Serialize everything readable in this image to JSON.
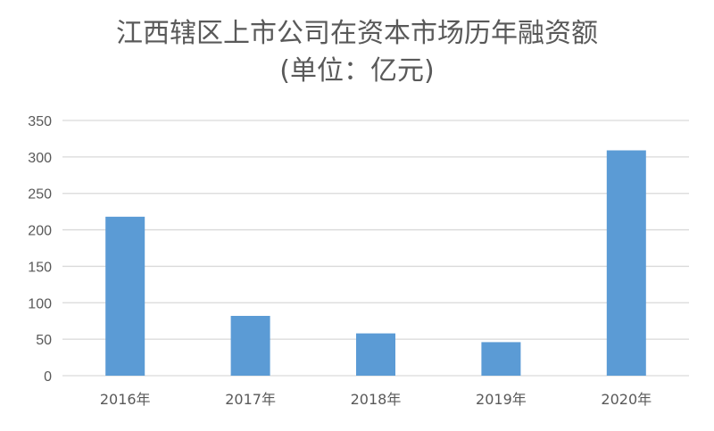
{
  "chart_data": {
    "type": "bar",
    "title": "江西辖区上市公司在资本市场历年融资额",
    "subtitle": "(单位：亿元)",
    "categories": [
      "2016年",
      "2017年",
      "2018年",
      "2019年",
      "2020年"
    ],
    "values": [
      218,
      82,
      58,
      46,
      309
    ],
    "yticks": [
      0,
      50,
      100,
      150,
      200,
      250,
      300,
      350
    ],
    "ylim": [
      0,
      350
    ],
    "grid": true,
    "legend": "none",
    "bar_color": "#5b9bd5",
    "grid_color": "#d9d9d9"
  }
}
